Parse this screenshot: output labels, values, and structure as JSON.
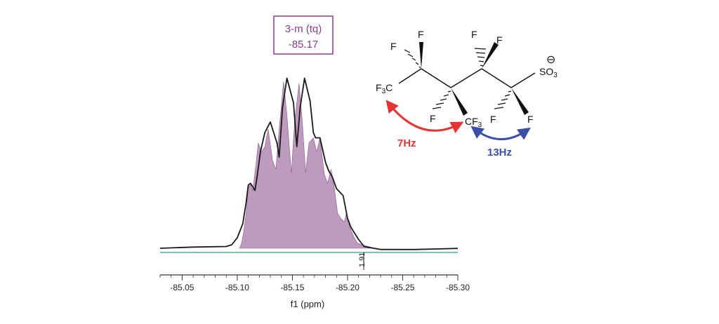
{
  "chart_data": {
    "type": "line",
    "xlabel": "f1 (ppm)",
    "x_direction": "reversed",
    "xlim": [
      -85.03,
      -85.3
    ],
    "xticks": [
      -85.05,
      -85.1,
      -85.15,
      -85.2,
      -85.25,
      -85.3
    ],
    "xtick_labels": [
      "-85.05",
      "-85.10",
      "-85.15",
      "-85.20",
      "-85.25",
      "-85.30"
    ],
    "peak_box": {
      "line1": "3-m (tq)",
      "line2": "-85.17"
    },
    "integral_value": "1.91",
    "series": [
      {
        "role": "experimental spectrum",
        "color": "#1a1a1a",
        "x": [
          -85.03,
          -85.06,
          -85.09,
          -85.095,
          -85.1,
          -85.105,
          -85.108,
          -85.11,
          -85.112,
          -85.116,
          -85.118,
          -85.121,
          -85.125,
          -85.13,
          -85.136,
          -85.138,
          -85.141,
          -85.145,
          -85.151,
          -85.154,
          -85.157,
          -85.161,
          -85.166,
          -85.169,
          -85.171,
          -85.175,
          -85.18,
          -85.183,
          -85.186,
          -85.19,
          -85.196,
          -85.2,
          -85.203,
          -85.21,
          -85.215,
          -85.23,
          -85.26,
          -85.3
        ],
        "y": [
          0.0,
          0.0,
          0.01,
          0.02,
          0.06,
          0.14,
          0.26,
          0.36,
          0.37,
          0.33,
          0.41,
          0.55,
          0.66,
          0.72,
          0.6,
          0.52,
          0.8,
          0.97,
          0.83,
          0.58,
          0.8,
          0.97,
          0.84,
          0.66,
          0.63,
          0.63,
          0.49,
          0.44,
          0.41,
          0.34,
          0.3,
          0.17,
          0.12,
          0.05,
          0.01,
          0.0,
          0.0,
          0.0
        ]
      },
      {
        "role": "simulated spectrum (filled)",
        "color": "#a878a8",
        "x": [
          -85.102,
          -85.104,
          -85.106,
          -85.108,
          -85.11,
          -85.112,
          -85.114,
          -85.117,
          -85.119,
          -85.122,
          -85.125,
          -85.128,
          -85.132,
          -85.135,
          -85.138,
          -85.142,
          -85.145,
          -85.149,
          -85.152,
          -85.156,
          -85.159,
          -85.162,
          -85.165,
          -85.169,
          -85.172,
          -85.175,
          -85.179,
          -85.182,
          -85.185,
          -85.188,
          -85.191,
          -85.194,
          -85.197,
          -85.199,
          -85.202,
          -85.206,
          -85.209,
          -85.213,
          -85.219,
          -85.225,
          -85.227
        ],
        "y": [
          0.0,
          0.03,
          0.1,
          0.2,
          0.35,
          0.36,
          0.33,
          0.48,
          0.6,
          0.55,
          0.58,
          0.68,
          0.5,
          0.45,
          0.68,
          0.95,
          0.76,
          0.43,
          0.72,
          0.94,
          0.72,
          0.43,
          0.6,
          0.63,
          0.55,
          0.63,
          0.42,
          0.37,
          0.45,
          0.35,
          0.2,
          0.17,
          0.15,
          0.2,
          0.12,
          0.06,
          0.03,
          0.02,
          0.01,
          0.0,
          0.0
        ]
      }
    ]
  },
  "structure": {
    "labels": {
      "F": "F",
      "F3C": "F3C",
      "CF3": "CF3",
      "SO3": "SO3",
      "charge": "⊖"
    },
    "couplings": [
      {
        "text": "7Hz",
        "color": "#e53434"
      },
      {
        "text": "13Hz",
        "color": "#3a4fa8"
      }
    ]
  },
  "colors": {
    "box_border": "#8a3f8a",
    "box_text": "#8a3f8a",
    "integral_line": "#2aa374",
    "axis": "#333333"
  }
}
